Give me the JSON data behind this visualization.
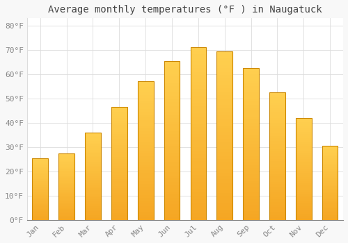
{
  "title": "Average monthly temperatures (°F ) in Naugatuck",
  "months": [
    "Jan",
    "Feb",
    "Mar",
    "Apr",
    "May",
    "Jun",
    "Jul",
    "Aug",
    "Sep",
    "Oct",
    "Nov",
    "Dec"
  ],
  "values": [
    25.5,
    27.5,
    36.0,
    46.5,
    57.0,
    65.5,
    71.0,
    69.5,
    62.5,
    52.5,
    42.0,
    30.5
  ],
  "bar_color_bottom": "#F5A623",
  "bar_color_top": "#FFD050",
  "bar_edge_color": "#CC8800",
  "background_color": "#F8F8F8",
  "plot_bg_color": "#FFFFFF",
  "grid_color": "#DDDDDD",
  "ytick_labels": [
    "0°F",
    "10°F",
    "20°F",
    "30°F",
    "40°F",
    "50°F",
    "60°F",
    "70°F",
    "80°F"
  ],
  "ytick_values": [
    0,
    10,
    20,
    30,
    40,
    50,
    60,
    70,
    80
  ],
  "ylim": [
    0,
    83
  ],
  "title_fontsize": 10,
  "tick_fontsize": 8,
  "tick_color": "#888888",
  "title_color": "#444444",
  "font_family": "monospace",
  "bar_width": 0.6
}
